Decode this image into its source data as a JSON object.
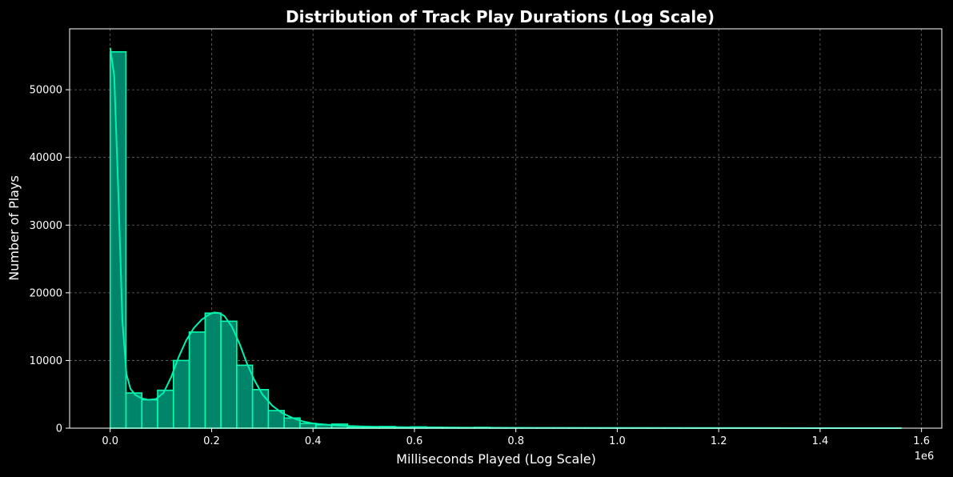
{
  "chart_data": {
    "type": "bar",
    "title": "Distribution of Track Play Durations (Log Scale)",
    "xlabel": "Milliseconds Played (Log Scale)",
    "ylabel": "Number of Plays",
    "x_offset_label": "1e6",
    "xlim": [
      -80000,
      1640000
    ],
    "ylim": [
      0,
      59000
    ],
    "xticks": [
      0.0,
      0.2,
      0.4,
      0.6,
      0.8,
      1.0,
      1.2,
      1.4,
      1.6
    ],
    "xtick_labels": [
      "0.0",
      "0.2",
      "0.4",
      "0.6",
      "0.8",
      "1.0",
      "1.2",
      "1.4",
      "1.6"
    ],
    "yticks": [
      0,
      10000,
      20000,
      30000,
      40000,
      50000
    ],
    "ytick_labels": [
      "0",
      "10000",
      "20000",
      "30000",
      "40000",
      "50000"
    ],
    "grid": true,
    "bin_width": 31200,
    "bin_start": 0,
    "counts": [
      55600,
      5200,
      4200,
      5600,
      10000,
      14200,
      17000,
      15800,
      9300,
      5700,
      2600,
      1500,
      700,
      500,
      600,
      200,
      150,
      250,
      100,
      200,
      150,
      100,
      80,
      120,
      60,
      50,
      40,
      30,
      30,
      25,
      20,
      20,
      20,
      15,
      15,
      15,
      15,
      10,
      10,
      10,
      10,
      10,
      10,
      10,
      10,
      10,
      5,
      5,
      5,
      5
    ],
    "kde": {
      "x": [
        0,
        8000,
        16000,
        24000,
        32000,
        40000,
        50000,
        62000,
        75000,
        90000,
        105000,
        120000,
        135000,
        150000,
        165000,
        180000,
        195000,
        205000,
        215000,
        225000,
        240000,
        255000,
        270000,
        285000,
        300000,
        320000,
        340000,
        360000,
        380000,
        400000,
        430000,
        460000,
        500000,
        550000,
        600000,
        700000,
        800000,
        1000000,
        1200000,
        1400000,
        1560000
      ],
      "y": [
        56200,
        52000,
        35000,
        16000,
        8000,
        5800,
        4900,
        4400,
        4200,
        4300,
        5200,
        7500,
        10500,
        13000,
        14800,
        16000,
        16800,
        17100,
        17000,
        16600,
        15000,
        12500,
        9500,
        7000,
        5000,
        3300,
        2200,
        1500,
        1000,
        700,
        500,
        350,
        250,
        180,
        130,
        90,
        60,
        40,
        25,
        15,
        10
      ]
    },
    "colors": {
      "background": "#000000",
      "bar_fill": "#00856a",
      "bar_edge": "#00ffb0",
      "kde_line": "#00f2b0",
      "grid": "#6a6a6a",
      "axes": "#ffffff"
    }
  }
}
